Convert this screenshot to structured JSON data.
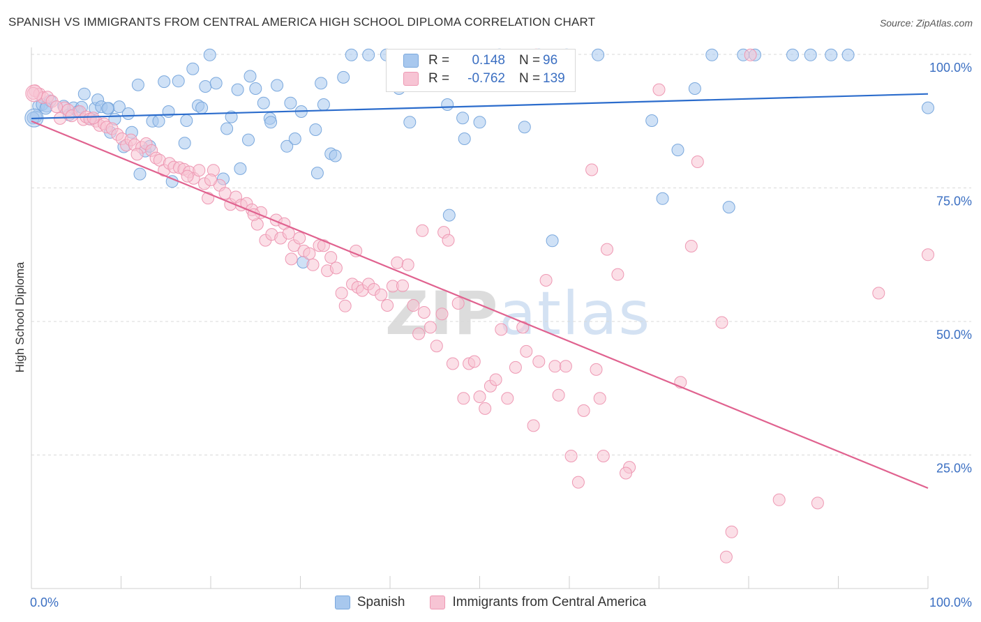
{
  "header": {
    "title": "SPANISH VS IMMIGRANTS FROM CENTRAL AMERICA HIGH SCHOOL DIPLOMA CORRELATION CHART",
    "source": "Source: ZipAtlas.com"
  },
  "watermark": {
    "zip": "ZIP",
    "atlas": "atlas"
  },
  "legend_top": {
    "rows": [
      {
        "r_label": "R =",
        "r_value": "0.148",
        "n_label": "N =",
        "n_value": "96",
        "color": "#a8c8ee"
      },
      {
        "r_label": "R =",
        "r_value": "-0.762",
        "n_label": "N =",
        "n_value": "139",
        "color": "#f5b8cb"
      }
    ]
  },
  "legend_bottom": {
    "items": [
      {
        "label": "Spanish",
        "color": "#a8c8ee"
      },
      {
        "label": "Immigrants from Central America",
        "color": "#f5b8cb"
      }
    ]
  },
  "colors": {
    "blue_fill": "#a8c8ee",
    "blue_stroke": "#7aa8dd",
    "blue_line": "#2b6ccc",
    "pink_fill": "#f7c4d4",
    "pink_stroke": "#ee98b3",
    "pink_line": "#e0628f",
    "tick_label": "#3b6fc2",
    "grid": "#d9d9d9"
  },
  "chart_data": {
    "type": "scatter",
    "ylabel": "High School Diploma",
    "xlabel": "",
    "xlim": [
      0,
      100
    ],
    "ylim": [
      0,
      100
    ],
    "x_tick_labels": [
      "0.0%",
      "100.0%"
    ],
    "y_ticks": [
      25,
      50,
      75,
      100
    ],
    "y_tick_labels": [
      "25.0%",
      "50.0%",
      "75.0%",
      "100.0%"
    ],
    "grid": "horizontal dashed",
    "legend_placement": "bottom",
    "series": [
      {
        "name": "Spanish",
        "R": 0.148,
        "N": 96,
        "trend": {
          "x": [
            0,
            100
          ],
          "y": [
            88.0,
            92.6
          ]
        },
        "points": [
          [
            0.5,
            88.3
          ],
          [
            0.8,
            90.3
          ],
          [
            1.2,
            90.6
          ],
          [
            1.7,
            90.3
          ],
          [
            2.1,
            91.3
          ],
          [
            3.6,
            90.3
          ],
          [
            4.2,
            88.7
          ],
          [
            4.7,
            90.0
          ],
          [
            5.2,
            89.3
          ],
          [
            5.6,
            90.1
          ],
          [
            5.9,
            92.6
          ],
          [
            6.6,
            87.9
          ],
          [
            7.1,
            89.9
          ],
          [
            7.4,
            91.5
          ],
          [
            7.8,
            90.2
          ],
          [
            8.6,
            89.9
          ],
          [
            8.8,
            85.4
          ],
          [
            9.3,
            87.9
          ],
          [
            9.8,
            90.2
          ],
          [
            10.3,
            82.7
          ],
          [
            10.8,
            88.9
          ],
          [
            11.2,
            85.4
          ],
          [
            11.9,
            94.3
          ],
          [
            12.1,
            77.6
          ],
          [
            12.7,
            81.9
          ],
          [
            13.2,
            82.8
          ],
          [
            13.5,
            87.5
          ],
          [
            14.2,
            87.5
          ],
          [
            14.8,
            94.9
          ],
          [
            15.3,
            89.3
          ],
          [
            15.7,
            76.2
          ],
          [
            16.4,
            95.0
          ],
          [
            17.1,
            83.4
          ],
          [
            17.3,
            87.6
          ],
          [
            18.0,
            97.3
          ],
          [
            18.6,
            90.4
          ],
          [
            19.0,
            90.0
          ],
          [
            19.4,
            94.0
          ],
          [
            19.9,
            99.9
          ],
          [
            20.6,
            94.6
          ],
          [
            21.4,
            76.7
          ],
          [
            21.8,
            86.1
          ],
          [
            22.3,
            88.3
          ],
          [
            23.3,
            78.6
          ],
          [
            23.0,
            93.4
          ],
          [
            24.2,
            84.0
          ],
          [
            24.4,
            95.9
          ],
          [
            25.0,
            93.6
          ],
          [
            25.9,
            90.9
          ],
          [
            26.6,
            88.0
          ],
          [
            26.7,
            87.3
          ],
          [
            27.4,
            94.2
          ],
          [
            28.5,
            82.8
          ],
          [
            28.9,
            90.9
          ],
          [
            29.4,
            84.2
          ],
          [
            30.1,
            89.3
          ],
          [
            30.3,
            61.1
          ],
          [
            31.7,
            85.9
          ],
          [
            31.9,
            77.8
          ],
          [
            32.3,
            94.6
          ],
          [
            32.6,
            90.6
          ],
          [
            33.4,
            81.4
          ],
          [
            33.9,
            81.0
          ],
          [
            34.8,
            95.7
          ],
          [
            35.7,
            99.9
          ],
          [
            37.6,
            99.9
          ],
          [
            39.6,
            99.9
          ],
          [
            41.0,
            93.6
          ],
          [
            42.2,
            87.3
          ],
          [
            46.4,
            90.6
          ],
          [
            46.6,
            69.9
          ],
          [
            48.1,
            88.1
          ],
          [
            48.3,
            84.2
          ],
          [
            50.0,
            87.3
          ],
          [
            52.2,
            99.9
          ],
          [
            55.0,
            86.4
          ],
          [
            56.6,
            99.9
          ],
          [
            58.1,
            65.1
          ],
          [
            59.7,
            99.9
          ],
          [
            63.2,
            99.9
          ],
          [
            69.2,
            87.6
          ],
          [
            70.4,
            73.0
          ],
          [
            72.1,
            82.1
          ],
          [
            74.0,
            93.6
          ],
          [
            75.9,
            99.9
          ],
          [
            77.8,
            71.4
          ],
          [
            79.4,
            99.9
          ],
          [
            80.7,
            99.9
          ],
          [
            84.9,
            99.9
          ],
          [
            86.9,
            99.9
          ],
          [
            89.2,
            99.9
          ],
          [
            91.1,
            99.9
          ],
          [
            100.0,
            90.0
          ],
          [
            1.6,
            89.9
          ],
          [
            8.5,
            89.9
          ],
          [
            0.2,
            88.1
          ]
        ]
      },
      {
        "name": "Immigrants from Central America",
        "R": -0.762,
        "N": 139,
        "trend": {
          "x": [
            0,
            100
          ],
          "y": [
            87.5,
            18.8
          ]
        },
        "points": [
          [
            0.4,
            93.2
          ],
          [
            0.9,
            92.6
          ],
          [
            1.3,
            91.9
          ],
          [
            1.8,
            92.0
          ],
          [
            2.3,
            91.2
          ],
          [
            3.2,
            88.0
          ],
          [
            3.7,
            90.0
          ],
          [
            4.1,
            89.6
          ],
          [
            4.5,
            88.5
          ],
          [
            5.4,
            89.3
          ],
          [
            5.8,
            87.8
          ],
          [
            6.1,
            88.3
          ],
          [
            6.5,
            87.9
          ],
          [
            7.2,
            87.5
          ],
          [
            7.6,
            86.7
          ],
          [
            8.1,
            87.0
          ],
          [
            8.4,
            86.4
          ],
          [
            9.0,
            86.1
          ],
          [
            9.6,
            85.0
          ],
          [
            10.1,
            84.2
          ],
          [
            10.6,
            83.0
          ],
          [
            11.1,
            84.0
          ],
          [
            11.5,
            83.1
          ],
          [
            12.3,
            82.6
          ],
          [
            12.8,
            83.3
          ],
          [
            13.4,
            82.0
          ],
          [
            13.9,
            80.6
          ],
          [
            14.3,
            80.2
          ],
          [
            14.8,
            78.3
          ],
          [
            15.4,
            79.6
          ],
          [
            15.9,
            78.9
          ],
          [
            16.5,
            78.8
          ],
          [
            17.0,
            78.5
          ],
          [
            17.6,
            78.0
          ],
          [
            18.1,
            76.8
          ],
          [
            18.7,
            78.3
          ],
          [
            19.3,
            75.8
          ],
          [
            19.7,
            73.1
          ],
          [
            20.3,
            78.3
          ],
          [
            21.0,
            75.5
          ],
          [
            21.6,
            74.0
          ],
          [
            22.2,
            71.9
          ],
          [
            22.8,
            73.3
          ],
          [
            23.4,
            71.8
          ],
          [
            24.0,
            72.1
          ],
          [
            24.6,
            70.9
          ],
          [
            25.2,
            68.2
          ],
          [
            25.6,
            70.4
          ],
          [
            26.1,
            65.2
          ],
          [
            26.8,
            66.3
          ],
          [
            27.3,
            69.0
          ],
          [
            27.8,
            65.6
          ],
          [
            28.2,
            68.3
          ],
          [
            28.7,
            66.5
          ],
          [
            29.3,
            64.2
          ],
          [
            29.9,
            65.6
          ],
          [
            30.4,
            63.2
          ],
          [
            31.0,
            62.7
          ],
          [
            31.4,
            60.6
          ],
          [
            32.1,
            64.2
          ],
          [
            32.6,
            64.2
          ],
          [
            33.0,
            59.5
          ],
          [
            33.4,
            62.0
          ],
          [
            34.0,
            60.0
          ],
          [
            34.6,
            55.3
          ],
          [
            35.0,
            52.9
          ],
          [
            35.8,
            57.0
          ],
          [
            36.4,
            56.4
          ],
          [
            36.9,
            55.8
          ],
          [
            37.6,
            57.0
          ],
          [
            38.2,
            56.0
          ],
          [
            39.0,
            55.0
          ],
          [
            39.7,
            53.0
          ],
          [
            40.3,
            56.6
          ],
          [
            40.8,
            61.0
          ],
          [
            41.4,
            56.7
          ],
          [
            42.0,
            60.6
          ],
          [
            42.6,
            53.0
          ],
          [
            43.2,
            47.7
          ],
          [
            43.8,
            51.7
          ],
          [
            44.5,
            48.9
          ],
          [
            45.2,
            45.4
          ],
          [
            45.8,
            51.4
          ],
          [
            46.0,
            66.7
          ],
          [
            46.5,
            65.2
          ],
          [
            47.0,
            42.1
          ],
          [
            47.6,
            53.4
          ],
          [
            48.2,
            35.6
          ],
          [
            48.8,
            42.1
          ],
          [
            49.4,
            42.5
          ],
          [
            50.0,
            35.9
          ],
          [
            50.6,
            33.7
          ],
          [
            51.2,
            37.9
          ],
          [
            51.8,
            39.1
          ],
          [
            52.4,
            48.5
          ],
          [
            53.1,
            35.6
          ],
          [
            54.0,
            41.4
          ],
          [
            54.8,
            48.9
          ],
          [
            55.2,
            44.4
          ],
          [
            56.0,
            30.5
          ],
          [
            56.6,
            42.5
          ],
          [
            57.4,
            57.7
          ],
          [
            58.4,
            41.6
          ],
          [
            58.8,
            36.2
          ],
          [
            59.6,
            41.6
          ],
          [
            60.2,
            24.8
          ],
          [
            61.0,
            19.9
          ],
          [
            61.6,
            33.3
          ],
          [
            62.5,
            78.4
          ],
          [
            63.0,
            41.0
          ],
          [
            63.4,
            35.6
          ],
          [
            63.8,
            24.8
          ],
          [
            64.2,
            63.5
          ],
          [
            65.4,
            58.8
          ],
          [
            66.7,
            22.7
          ],
          [
            66.3,
            21.6
          ],
          [
            70.0,
            93.4
          ],
          [
            72.4,
            38.6
          ],
          [
            73.6,
            64.1
          ],
          [
            74.3,
            79.9
          ],
          [
            77.0,
            49.8
          ],
          [
            77.5,
            5.9
          ],
          [
            78.1,
            10.6
          ],
          [
            80.2,
            99.9
          ],
          [
            83.4,
            16.6
          ],
          [
            87.7,
            16.0
          ],
          [
            94.5,
            55.3
          ],
          [
            100.0,
            62.5
          ],
          [
            0.2,
            92.7
          ],
          [
            2.8,
            90.2
          ],
          [
            6.9,
            88.1
          ],
          [
            11.8,
            81.3
          ],
          [
            17.4,
            77.2
          ],
          [
            20.0,
            76.5
          ],
          [
            24.8,
            70.0
          ],
          [
            29.0,
            61.7
          ],
          [
            36.2,
            63.2
          ],
          [
            43.6,
            67.0
          ],
          [
            56.3,
            99.9
          ]
        ]
      }
    ]
  }
}
